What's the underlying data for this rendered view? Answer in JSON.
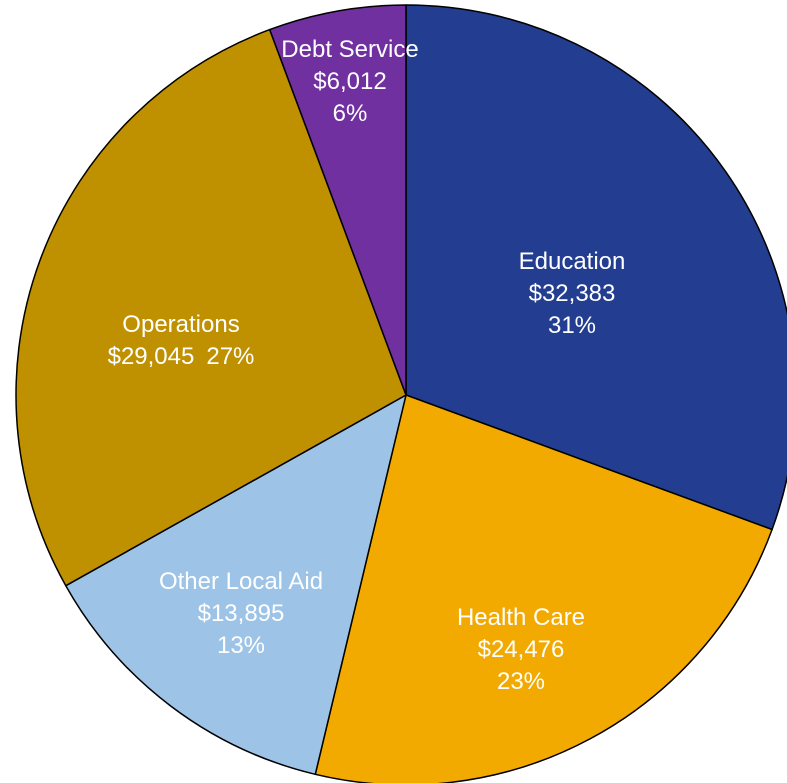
{
  "chart_data": {
    "type": "pie",
    "categories": [
      "Education",
      "Health Care",
      "Other Local Aid",
      "Operations",
      "Debt Service"
    ],
    "values": [
      32383,
      24476,
      13895,
      29045,
      6012
    ],
    "value_labels": [
      "$32,383",
      "$24,476",
      "$13,895",
      "$29,045",
      "$6,012"
    ],
    "percents": [
      31,
      23,
      13,
      27,
      6
    ],
    "percent_labels": [
      "31%",
      "23%",
      "13%",
      "27%",
      "6%"
    ],
    "colors": [
      "#233e91",
      "#f2a900",
      "#9dc3e6",
      "#bf9000",
      "#7030a0"
    ]
  }
}
